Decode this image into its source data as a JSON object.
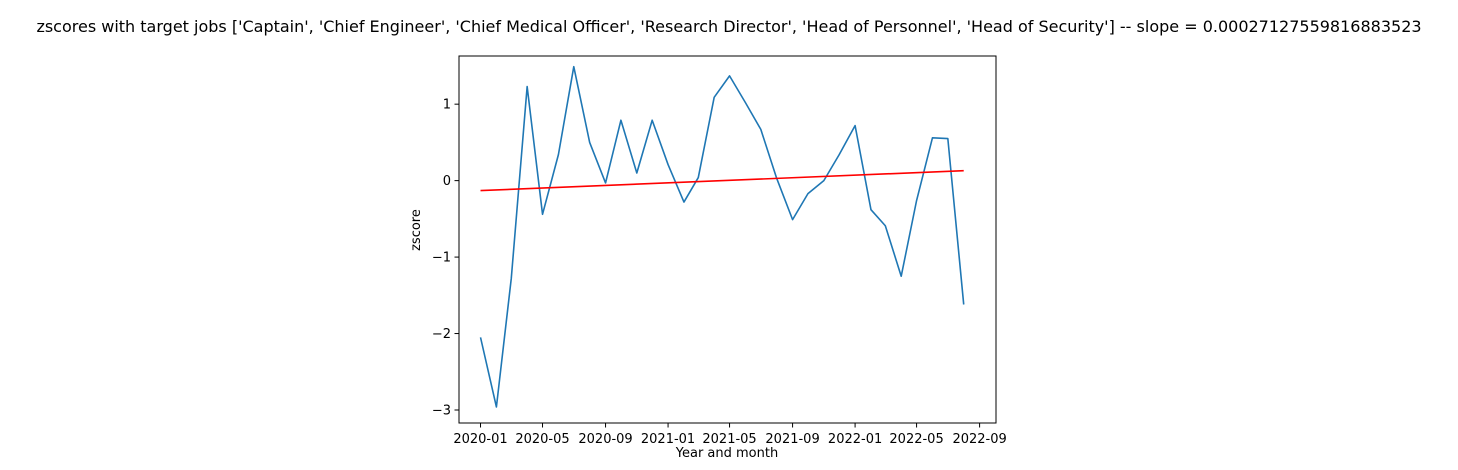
{
  "chart_data": {
    "type": "line",
    "title": "zscores with target jobs ['Captain', 'Chief Engineer', 'Chief Medical Officer', 'Research Director', 'Head of Personnel', 'Head of Security'] -- slope = 0.00027127559816883523",
    "xlabel": "Year and month",
    "ylabel": "zscore",
    "x_tick_labels": [
      "2020-01",
      "2020-05",
      "2020-09",
      "2021-01",
      "2021-05",
      "2021-09",
      "2022-01",
      "2022-05",
      "2022-09"
    ],
    "y_tick_labels": [
      "−3",
      "−2",
      "−1",
      "0",
      "1"
    ],
    "y_ticks": [
      -3,
      -2,
      -1,
      0,
      1
    ],
    "xlim": [
      "2019-11-20",
      "2022-10-03"
    ],
    "ylim": [
      -3.17,
      1.63
    ],
    "grid": false,
    "series": [
      {
        "color": "#1f77b4",
        "x": [
          "2020-01",
          "2020-02",
          "2020-03",
          "2020-04",
          "2020-05",
          "2020-06",
          "2020-07",
          "2020-08",
          "2020-09",
          "2020-10",
          "2020-11",
          "2020-12",
          "2021-01",
          "2021-02",
          "2021-03",
          "2021-04",
          "2021-05",
          "2021-06",
          "2021-07",
          "2021-08",
          "2021-09",
          "2021-10",
          "2021-11",
          "2021-12",
          "2022-01",
          "2022-02",
          "2022-03",
          "2022-04",
          "2022-05",
          "2022-06",
          "2022-07",
          "2022-08"
        ],
        "y": [
          -2.05,
          -2.96,
          -1.28,
          1.23,
          -0.44,
          0.34,
          1.49,
          0.5,
          -0.03,
          0.79,
          0.1,
          0.79,
          0.21,
          -0.28,
          0.04,
          1.09,
          1.37,
          1.02,
          0.67,
          0.03,
          -0.51,
          -0.17,
          0.0,
          0.34,
          0.72,
          -0.38,
          -0.59,
          -1.25,
          -0.26,
          0.56,
          0.55,
          -1.62
        ]
      },
      {
        "color": "#ff0000",
        "x": [
          "2020-01",
          "2022-08"
        ],
        "y": [
          -0.13,
          0.13
        ]
      }
    ]
  }
}
